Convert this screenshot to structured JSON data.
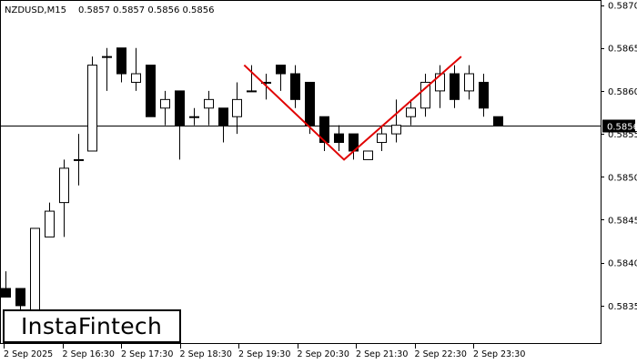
{
  "header": {
    "symbol_label": "NZDUSD,M15",
    "ohlc_label": "0.5857 0.5857 0.5856 0.5856"
  },
  "logo": {
    "text": "InstaFintech"
  },
  "chart_data": {
    "type": "candlestick",
    "symbol": "NZDUSD",
    "timeframe": "M15",
    "ylim": [
      0.5826,
      0.587
    ],
    "y_ticks": [
      "0.5870",
      "0.5865",
      "0.5860",
      "0.5855",
      "0.5850",
      "0.5845",
      "0.5840",
      "0.5835"
    ],
    "x_ticks": [
      "2 Sep 2025",
      "2 Sep 16:30",
      "2 Sep 17:30",
      "2 Sep 18:30",
      "2 Sep 19:30",
      "2 Sep 20:30",
      "2 Sep 21:30",
      "2 Sep 22:30",
      "2 Sep 23:30"
    ],
    "current_price": "0.5856",
    "candles": [
      {
        "o": 0.5837,
        "h": 0.5839,
        "l": 0.5836,
        "c": 0.5836
      },
      {
        "o": 0.5837,
        "h": 0.5837,
        "l": 0.5834,
        "c": 0.5835
      },
      {
        "o": 0.5833,
        "h": 0.5844,
        "l": 0.5833,
        "c": 0.5844
      },
      {
        "o": 0.5843,
        "h": 0.5847,
        "l": 0.5843,
        "c": 0.5846
      },
      {
        "o": 0.5847,
        "h": 0.5852,
        "l": 0.5843,
        "c": 0.5851
      },
      {
        "o": 0.5852,
        "h": 0.5855,
        "l": 0.5849,
        "c": 0.5852
      },
      {
        "o": 0.5853,
        "h": 0.5864,
        "l": 0.5853,
        "c": 0.5863
      },
      {
        "o": 0.5864,
        "h": 0.5865,
        "l": 0.586,
        "c": 0.5864
      },
      {
        "o": 0.5865,
        "h": 0.5865,
        "l": 0.5861,
        "c": 0.5862
      },
      {
        "o": 0.5861,
        "h": 0.5865,
        "l": 0.586,
        "c": 0.5862
      },
      {
        "o": 0.5863,
        "h": 0.5863,
        "l": 0.5857,
        "c": 0.5857
      },
      {
        "o": 0.5858,
        "h": 0.586,
        "l": 0.5856,
        "c": 0.5859
      },
      {
        "o": 0.586,
        "h": 0.586,
        "l": 0.5852,
        "c": 0.5856
      },
      {
        "o": 0.5857,
        "h": 0.5858,
        "l": 0.5856,
        "c": 0.5857
      },
      {
        "o": 0.5858,
        "h": 0.586,
        "l": 0.5856,
        "c": 0.5859
      },
      {
        "o": 0.5858,
        "h": 0.5858,
        "l": 0.5854,
        "c": 0.5856
      },
      {
        "o": 0.5857,
        "h": 0.5861,
        "l": 0.5855,
        "c": 0.5859
      },
      {
        "o": 0.586,
        "h": 0.5863,
        "l": 0.586,
        "c": 0.586
      },
      {
        "o": 0.5861,
        "h": 0.5862,
        "l": 0.5859,
        "c": 0.5861
      },
      {
        "o": 0.5863,
        "h": 0.5863,
        "l": 0.586,
        "c": 0.5862
      },
      {
        "o": 0.5862,
        "h": 0.5863,
        "l": 0.5858,
        "c": 0.5859
      },
      {
        "o": 0.5861,
        "h": 0.5861,
        "l": 0.5855,
        "c": 0.5856
      },
      {
        "o": 0.5857,
        "h": 0.5857,
        "l": 0.5853,
        "c": 0.5854
      },
      {
        "o": 0.5855,
        "h": 0.5856,
        "l": 0.5853,
        "c": 0.5854
      },
      {
        "o": 0.5855,
        "h": 0.5855,
        "l": 0.5852,
        "c": 0.5853
      },
      {
        "o": 0.5852,
        "h": 0.5853,
        "l": 0.5852,
        "c": 0.5853
      },
      {
        "o": 0.5854,
        "h": 0.5856,
        "l": 0.5853,
        "c": 0.5855
      },
      {
        "o": 0.5855,
        "h": 0.5859,
        "l": 0.5854,
        "c": 0.5856
      },
      {
        "o": 0.5857,
        "h": 0.5859,
        "l": 0.5856,
        "c": 0.5858
      },
      {
        "o": 0.5858,
        "h": 0.5862,
        "l": 0.5857,
        "c": 0.5861
      },
      {
        "o": 0.586,
        "h": 0.5863,
        "l": 0.5858,
        "c": 0.5862
      },
      {
        "o": 0.5862,
        "h": 0.5863,
        "l": 0.5858,
        "c": 0.5859
      },
      {
        "o": 0.586,
        "h": 0.5863,
        "l": 0.5859,
        "c": 0.5862
      },
      {
        "o": 0.5861,
        "h": 0.5862,
        "l": 0.5857,
        "c": 0.5858
      },
      {
        "o": 0.5857,
        "h": 0.5857,
        "l": 0.5856,
        "c": 0.5856
      }
    ],
    "pattern_line": [
      {
        "candle": 16.5,
        "price": 0.5863
      },
      {
        "candle": 23.4,
        "price": 0.5852
      },
      {
        "candle": 31.5,
        "price": 0.5864
      }
    ],
    "colors": {
      "pattern": "#e00000",
      "bull_fill": "#ffffff",
      "bear_fill": "#000000",
      "axis": "#000000"
    }
  }
}
